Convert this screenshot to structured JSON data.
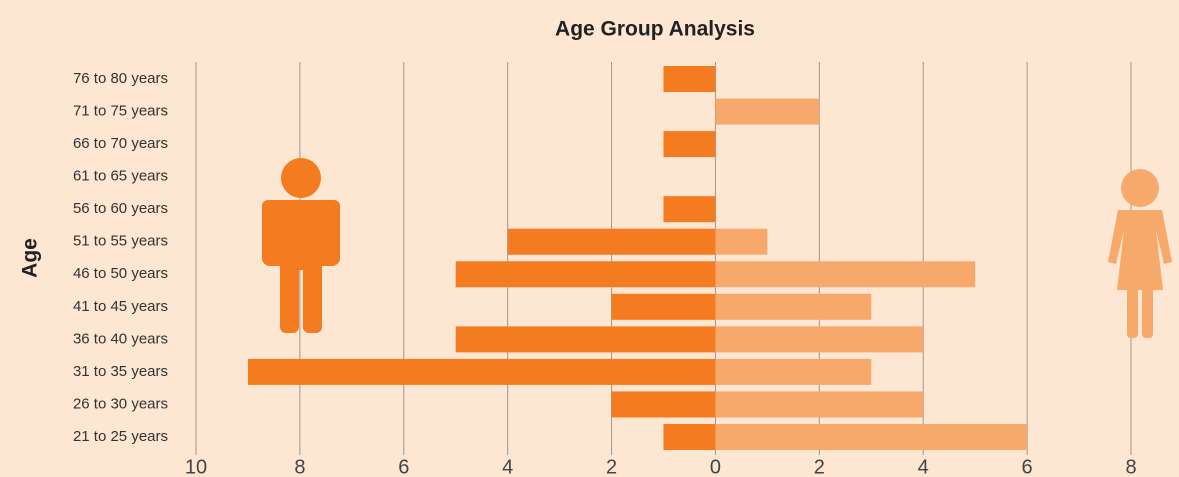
{
  "chart_data": {
    "type": "pyramid",
    "title": "Age Group Analysis",
    "y_label": "Age",
    "categories": [
      "76 to 80 years",
      "71 to 75 years",
      "66 to 70 years",
      "61 to 65 years",
      "56 to 60 years",
      "51 to 55 years",
      "46 to 50 years",
      "41 to 45 years",
      "36 to 40 years",
      "31 to 35 years",
      "26 to 30 years",
      "21 to 25 years"
    ],
    "series": [
      {
        "color": "#f47b20",
        "values": [
          1,
          0,
          1,
          0,
          1,
          4,
          5,
          2,
          5,
          9,
          2,
          1
        ]
      },
      {
        "color": "#f7a96b",
        "values": [
          0,
          2,
          0,
          0,
          0,
          1,
          5,
          3,
          4,
          3,
          4,
          6
        ]
      }
    ],
    "xlim": [
      -10,
      8
    ],
    "xticks": [
      {
        "value": -10,
        "label": "10"
      },
      {
        "value": -8,
        "label": "8"
      },
      {
        "value": -6,
        "label": "6"
      },
      {
        "value": -4,
        "label": "4"
      },
      {
        "value": -2,
        "label": "2"
      },
      0,
      2,
      4,
      6,
      8
    ],
    "grid": true
  }
}
